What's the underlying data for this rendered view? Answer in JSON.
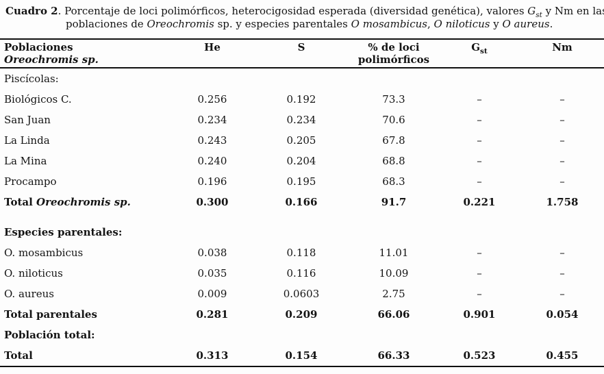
{
  "caption": {
    "bold_label": "Cuadro 2",
    "line1_rest_a": ". Porcentaje de loci polimórficos, heterocigosidad esperada (diversidad genética), valores ",
    "gst_base": "G",
    "gst_sub": "st",
    "line1_rest_b": " y Nm en las",
    "line2_a": "poblaciones de ",
    "line2_genus": "Oreochromis",
    "line2_b": " sp. y especies parentales ",
    "line2_sp1": "O mosambicus",
    "line2_c": ", ",
    "line2_sp2": "O niloticus",
    "line2_d": " y ",
    "line2_sp3": "O aureus",
    "line2_end": "."
  },
  "table": {
    "header": {
      "col1_line1": "Poblaciones",
      "col1_line2": "Oreochromis sp.",
      "he": "He",
      "s": "S",
      "loci_line1": "% de loci",
      "loci_line2": "polimórficos",
      "gst_base": "G",
      "gst_sub": "st",
      "nm": "Nm"
    },
    "rows": [
      {
        "type": "section",
        "label": "Piscícolas:"
      },
      {
        "type": "data",
        "label": "Biológicos C.",
        "he": "0.256",
        "s": "0.192",
        "loci": "73.3",
        "gst": "–",
        "nm": "–"
      },
      {
        "type": "data",
        "label": "San Juan",
        "he": "0.234",
        "s": "0.234",
        "loci": "70.6",
        "gst": "–",
        "nm": "–"
      },
      {
        "type": "data",
        "label": "La Linda",
        "he": "0.243",
        "s": "0.205",
        "loci": "67.8",
        "gst": "–",
        "nm": "–"
      },
      {
        "type": "data",
        "label": "La Mina",
        "he": "0.240",
        "s": "0.204",
        "loci": "68.8",
        "gst": "–",
        "nm": "–"
      },
      {
        "type": "data",
        "label": "Procampo",
        "he": "0.196",
        "s": "0.195",
        "loci": "68.3",
        "gst": "–",
        "nm": "–"
      },
      {
        "type": "total",
        "label": "Total ",
        "label_italic": "Oreochromis sp.",
        "he": "0.300",
        "s": "0.166",
        "loci": "91.7",
        "gst": "0.221",
        "nm": "1.758"
      },
      {
        "type": "section-bold",
        "label": "Especies parentales:"
      },
      {
        "type": "data",
        "label": "O. mosambicus",
        "he": "0.038",
        "s": "0.118",
        "loci": "11.01",
        "gst": "–",
        "nm": "–"
      },
      {
        "type": "data",
        "label": "O. niloticus",
        "he": "0.035",
        "s": "0.116",
        "loci": "10.09",
        "gst": "–",
        "nm": "–"
      },
      {
        "type": "data",
        "label": "O. aureus",
        "he": "0.009",
        "s": "0.0603",
        "loci": "2.75",
        "gst": "–",
        "nm": "–"
      },
      {
        "type": "total",
        "label": "Total parentales",
        "he": "0.281",
        "s": "0.209",
        "loci": "66.06",
        "gst": "0.901",
        "nm": "0.054"
      },
      {
        "type": "section-bold",
        "label": "Población total:"
      },
      {
        "type": "total",
        "label": "Total",
        "he": "0.313",
        "s": "0.154",
        "loci": "66.33",
        "gst": "0.523",
        "nm": "0.455"
      }
    ]
  }
}
